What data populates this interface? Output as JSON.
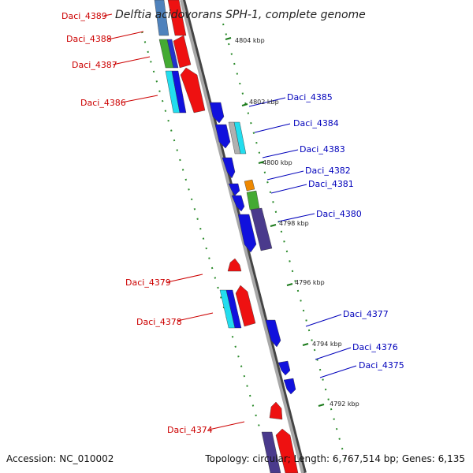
{
  "title": "Delftia acidovorans SPH-1, complete genome",
  "accession": "Accession: NC_010002",
  "summary": "Topology: circular; Length: 6,767,514 bp; Genes: 6,135",
  "colors": {
    "reverse_label": "#cc0000",
    "forward_label": "#0000bb",
    "tick": "#1a7a1a",
    "backbone": "#888888"
  },
  "kbp_marks": [
    "4804 kbp",
    "4802 kbp",
    "4800 kbp",
    "4798 kbp",
    "4796 kbp",
    "4794 kbp",
    "4792 kbp"
  ],
  "genes_reverse": [
    "Daci_4389",
    "Daci_4388",
    "Daci_4387",
    "Daci_4386",
    "Daci_4379",
    "Daci_4378",
    "Daci_4374"
  ],
  "genes_forward": [
    "Daci_4385",
    "Daci_4384",
    "Daci_4383",
    "Daci_4382",
    "Daci_4381",
    "Daci_4380",
    "Daci_4377",
    "Daci_4376",
    "Daci_4375"
  ]
}
